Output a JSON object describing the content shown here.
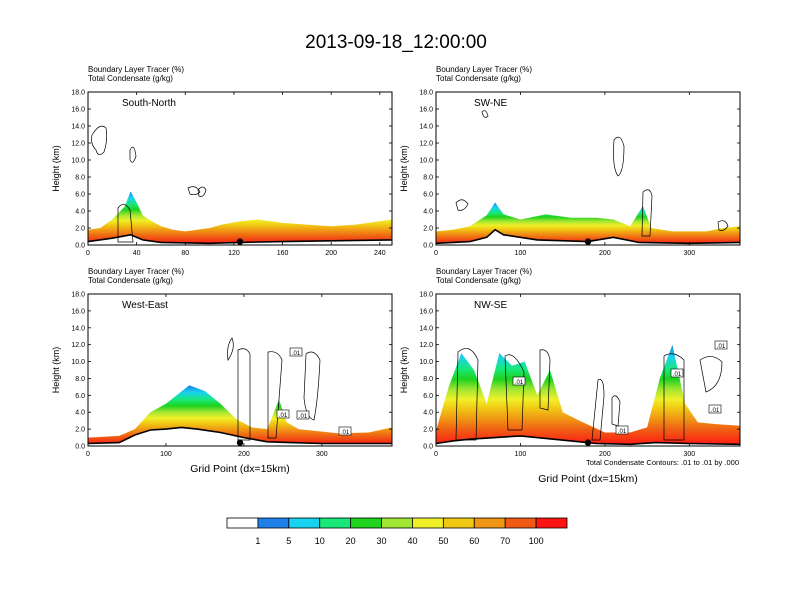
{
  "title": "2013-09-18_12:00:00",
  "field_labels": {
    "field1": "Boundary Layer Tracer",
    "unit1": "(%)",
    "field2": "Total Condensate",
    "unit2": "(g/kg)"
  },
  "ylabel": "Height (km)",
  "xlabel": "Grid Point (dx=15km)",
  "contour_note": "Total Condensate Contours: .01 to .01 by .000",
  "y_ticks": [
    "0.0",
    "2.0",
    "4.0",
    "6.0",
    "8.0",
    "10.0",
    "12.0",
    "14.0",
    "16.0",
    "18.0"
  ],
  "contour_labels": [
    ".01",
    ".01",
    ".01",
    ".01",
    ".01",
    ".01",
    ".01",
    ".01",
    ".01"
  ],
  "colorbar": {
    "colors": [
      "#ffffff",
      "#1e7fe6",
      "#18d2f0",
      "#18e87a",
      "#1ed21e",
      "#a0e632",
      "#f0f028",
      "#f0c814",
      "#f09614",
      "#f05a14",
      "#ff1414"
    ],
    "tick_labels": [
      "1",
      "5",
      "10",
      "20",
      "30",
      "40",
      "50",
      "60",
      "70",
      "100"
    ]
  },
  "chart_data": [
    {
      "type": "heatmap",
      "name": "South-North",
      "xlim": [
        0,
        250
      ],
      "ylim": [
        0,
        18
      ],
      "x_ticks": [
        "0",
        "40",
        "80",
        "120",
        "160",
        "200",
        "240"
      ],
      "tracer_top_km": [
        [
          0,
          1.8
        ],
        [
          10,
          2.0
        ],
        [
          20,
          3.0
        ],
        [
          30,
          4.5
        ],
        [
          35,
          6.3
        ],
        [
          40,
          5.0
        ],
        [
          45,
          3.5
        ],
        [
          50,
          3.0
        ],
        [
          60,
          2.2
        ],
        [
          70,
          1.8
        ],
        [
          80,
          1.6
        ],
        [
          100,
          2.0
        ],
        [
          110,
          2.4
        ],
        [
          125,
          2.8
        ],
        [
          140,
          3.0
        ],
        [
          160,
          2.6
        ],
        [
          180,
          2.4
        ],
        [
          200,
          2.2
        ],
        [
          220,
          2.4
        ],
        [
          240,
          2.8
        ],
        [
          250,
          3.0
        ]
      ],
      "terrain_km": [
        [
          0,
          0.4
        ],
        [
          20,
          0.8
        ],
        [
          35,
          1.2
        ],
        [
          45,
          0.6
        ],
        [
          60,
          0.3
        ],
        [
          100,
          0.2
        ],
        [
          125,
          0.3
        ],
        [
          160,
          0.4
        ],
        [
          200,
          0.5
        ],
        [
          250,
          0.6
        ]
      ],
      "marker_x": 125
    },
    {
      "type": "heatmap",
      "name": "SW-NE",
      "xlim": [
        0,
        360
      ],
      "ylim": [
        0,
        18
      ],
      "x_ticks": [
        "0",
        "100",
        "200",
        "300"
      ],
      "tracer_top_km": [
        [
          0,
          1.6
        ],
        [
          20,
          1.8
        ],
        [
          40,
          2.2
        ],
        [
          60,
          3.5
        ],
        [
          70,
          5.0
        ],
        [
          80,
          3.6
        ],
        [
          100,
          3.0
        ],
        [
          130,
          3.6
        ],
        [
          160,
          3.2
        ],
        [
          190,
          3.2
        ],
        [
          210,
          3.0
        ],
        [
          230,
          2.2
        ],
        [
          245,
          4.6
        ],
        [
          255,
          2.0
        ],
        [
          280,
          1.6
        ],
        [
          320,
          1.6
        ],
        [
          340,
          2.0
        ],
        [
          360,
          2.2
        ]
      ],
      "terrain_km": [
        [
          0,
          0.2
        ],
        [
          40,
          0.4
        ],
        [
          60,
          0.9
        ],
        [
          70,
          1.8
        ],
        [
          80,
          1.2
        ],
        [
          120,
          0.6
        ],
        [
          180,
          0.4
        ],
        [
          210,
          0.9
        ],
        [
          240,
          0.3
        ],
        [
          300,
          0.2
        ],
        [
          360,
          0.3
        ]
      ],
      "marker_x": 180
    },
    {
      "type": "heatmap",
      "name": "West-East",
      "xlim": [
        0,
        390
      ],
      "ylim": [
        0,
        18
      ],
      "x_ticks": [
        "0",
        "100",
        "200",
        "300"
      ],
      "tracer_top_km": [
        [
          0,
          1.0
        ],
        [
          40,
          1.2
        ],
        [
          60,
          2.0
        ],
        [
          80,
          4.0
        ],
        [
          100,
          5.0
        ],
        [
          130,
          7.2
        ],
        [
          150,
          6.5
        ],
        [
          170,
          5.0
        ],
        [
          190,
          3.2
        ],
        [
          210,
          2.2
        ],
        [
          230,
          2.0
        ],
        [
          245,
          5.5
        ],
        [
          255,
          2.8
        ],
        [
          270,
          2.0
        ],
        [
          290,
          1.8
        ],
        [
          320,
          1.5
        ],
        [
          360,
          1.6
        ],
        [
          390,
          2.2
        ]
      ],
      "terrain_km": [
        [
          0,
          0.3
        ],
        [
          40,
          0.4
        ],
        [
          60,
          1.3
        ],
        [
          80,
          1.9
        ],
        [
          100,
          2.0
        ],
        [
          120,
          2.2
        ],
        [
          140,
          2.0
        ],
        [
          170,
          1.6
        ],
        [
          200,
          1.0
        ],
        [
          230,
          0.5
        ],
        [
          260,
          0.4
        ],
        [
          300,
          0.3
        ],
        [
          390,
          0.3
        ]
      ],
      "marker_x": 195
    },
    {
      "type": "heatmap",
      "name": "NW-SE",
      "xlim": [
        0,
        360
      ],
      "ylim": [
        0,
        18
      ],
      "x_ticks": [
        "0",
        "100",
        "200",
        "300"
      ],
      "tracer_top_km": [
        [
          0,
          1.8
        ],
        [
          15,
          7.0
        ],
        [
          30,
          11.0
        ],
        [
          45,
          9.0
        ],
        [
          60,
          5.0
        ],
        [
          75,
          11.0
        ],
        [
          90,
          9.5
        ],
        [
          105,
          10.0
        ],
        [
          120,
          6.0
        ],
        [
          135,
          9.0
        ],
        [
          150,
          4.0
        ],
        [
          170,
          3.0
        ],
        [
          200,
          1.6
        ],
        [
          230,
          1.6
        ],
        [
          250,
          2.2
        ],
        [
          265,
          8.0
        ],
        [
          280,
          12.0
        ],
        [
          295,
          5.0
        ],
        [
          310,
          2.8
        ],
        [
          330,
          2.6
        ],
        [
          360,
          2.4
        ]
      ],
      "terrain_km": [
        [
          0,
          0.3
        ],
        [
          20,
          0.6
        ],
        [
          40,
          0.8
        ],
        [
          70,
          1.0
        ],
        [
          100,
          1.2
        ],
        [
          130,
          0.9
        ],
        [
          160,
          0.6
        ],
        [
          190,
          0.3
        ],
        [
          230,
          0.2
        ],
        [
          260,
          0.4
        ],
        [
          300,
          0.3
        ],
        [
          360,
          0.2
        ]
      ],
      "marker_x": 180
    }
  ]
}
